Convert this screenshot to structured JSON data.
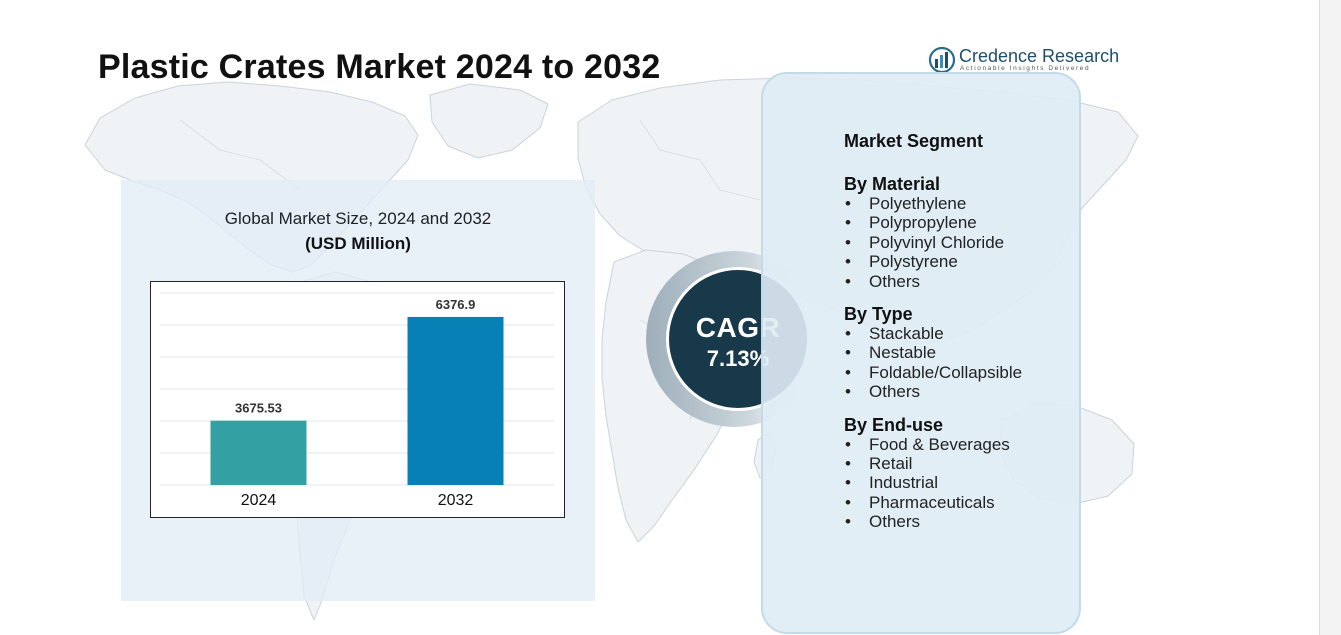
{
  "title": "Plastic Crates Market 2024 to 2032",
  "logo": {
    "icon": "bar-chart-globe-icon",
    "name": "Credence Research",
    "tagline": "Actionable Insights Delivered"
  },
  "background_icon": "world-map-outline",
  "colors": {
    "bar_2024": "#33a1a3",
    "bar_2032": "#0780b5",
    "cagr_circle": "#17394a",
    "panel_fill": "#e2ecf6",
    "card_border": "#c2dbe8"
  },
  "chart_data": {
    "type": "bar",
    "title": "Global Market Size, 2024 and 2032",
    "subtitle": "(USD Million)",
    "categories": [
      "2024",
      "2032"
    ],
    "values": [
      3675.53,
      6376.9
    ],
    "value_labels": [
      "3675.53",
      "6376.9"
    ],
    "bar_colors": [
      "#33a1a3",
      "#0780b5"
    ],
    "ylim": [
      2000,
      7000
    ],
    "xlabel": "",
    "ylabel": "",
    "grid": true,
    "legend": "none"
  },
  "cagr": {
    "label": "CAGR",
    "value": "7.13%"
  },
  "segments": {
    "heading": "Market Segment",
    "groups": [
      {
        "title": "By Material",
        "items": [
          "Polyethylene",
          "Polypropylene",
          "Polyvinyl Chloride",
          "Polystyrene",
          "Others"
        ]
      },
      {
        "title": "By Type",
        "items": [
          "Stackable",
          "Nestable",
          "Foldable/Collapsible",
          "Others"
        ]
      },
      {
        "title": "By End-use",
        "items": [
          "Food & Beverages",
          "Retail",
          "Industrial",
          "Pharmaceuticals",
          "Others"
        ]
      }
    ]
  }
}
